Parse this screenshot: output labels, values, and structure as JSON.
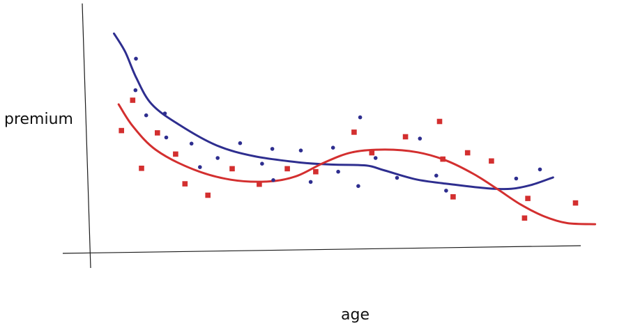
{
  "chart_data": {
    "type": "scatter",
    "xlabel": "age",
    "ylabel": "premium",
    "xlim": [
      0,
      100
    ],
    "ylim": [
      0,
      100
    ],
    "grid": false,
    "legend": "none",
    "series": [
      {
        "color": "#2e2e8f",
        "marker": "dot",
        "points": [
          [
            9.7,
            81.0
          ],
          [
            9.6,
            67.2
          ],
          [
            11.9,
            56.2
          ],
          [
            15.9,
            57.0
          ],
          [
            16.2,
            46.5
          ],
          [
            21.6,
            43.8
          ],
          [
            23.4,
            33.5
          ],
          [
            27.2,
            37.5
          ],
          [
            32.0,
            44.0
          ],
          [
            36.7,
            35.0
          ],
          [
            38.9,
            41.5
          ],
          [
            39.1,
            27.8
          ],
          [
            45.0,
            40.8
          ],
          [
            47.1,
            27.0
          ],
          [
            51.9,
            42.0
          ],
          [
            53.0,
            31.5
          ],
          [
            57.3,
            25.2
          ],
          [
            57.7,
            55.3
          ],
          [
            61.0,
            37.5
          ],
          [
            65.6,
            28.8
          ],
          [
            70.5,
            46.0
          ],
          [
            74.0,
            29.8
          ],
          [
            76.1,
            23.2
          ],
          [
            91.1,
            28.5
          ],
          [
            96.2,
            32.5
          ]
        ],
        "trend": [
          [
            5.0,
            92.0
          ],
          [
            7.4,
            84.0
          ],
          [
            9.8,
            72.5
          ],
          [
            13.1,
            61.0
          ],
          [
            19.0,
            52.0
          ],
          [
            27.0,
            43.0
          ],
          [
            35.0,
            38.3
          ],
          [
            45.0,
            35.5
          ],
          [
            52.0,
            34.6
          ],
          [
            59.0,
            34.2
          ],
          [
            63.0,
            32.0
          ],
          [
            70.0,
            28.0
          ],
          [
            78.0,
            25.8
          ],
          [
            85.0,
            24.2
          ],
          [
            90.0,
            24.0
          ],
          [
            94.5,
            25.8
          ],
          [
            99.0,
            29.0
          ]
        ]
      },
      {
        "color": "#d32f2f",
        "marker": "square",
        "points": [
          [
            6.6,
            49.5
          ],
          [
            9.0,
            62.8
          ],
          [
            10.9,
            33.0
          ],
          [
            14.3,
            48.5
          ],
          [
            18.2,
            39.2
          ],
          [
            20.2,
            26.2
          ],
          [
            25.1,
            21.2
          ],
          [
            30.3,
            32.8
          ],
          [
            36.1,
            26.0
          ],
          [
            42.1,
            32.8
          ],
          [
            48.2,
            31.5
          ],
          [
            56.4,
            48.8
          ],
          [
            60.2,
            39.8
          ],
          [
            67.4,
            46.8
          ],
          [
            74.7,
            53.5
          ],
          [
            75.4,
            37.0
          ],
          [
            77.6,
            20.5
          ],
          [
            80.7,
            39.8
          ],
          [
            85.8,
            36.2
          ],
          [
            93.6,
            19.8
          ],
          [
            92.9,
            11.2
          ],
          [
            103.8,
            17.8
          ]
        ],
        "trend": [
          [
            6.0,
            61.0
          ],
          [
            9.0,
            51.5
          ],
          [
            14.0,
            41.0
          ],
          [
            22.0,
            32.5
          ],
          [
            30.0,
            28.0
          ],
          [
            38.0,
            27.2
          ],
          [
            44.0,
            29.5
          ],
          [
            50.0,
            35.5
          ],
          [
            56.0,
            40.0
          ],
          [
            63.0,
            41.2
          ],
          [
            70.0,
            40.0
          ],
          [
            76.0,
            36.5
          ],
          [
            82.0,
            30.5
          ],
          [
            87.0,
            24.0
          ],
          [
            92.0,
            17.2
          ],
          [
            97.0,
            12.0
          ],
          [
            102.0,
            9.0
          ],
          [
            108.0,
            8.5
          ]
        ]
      }
    ]
  }
}
